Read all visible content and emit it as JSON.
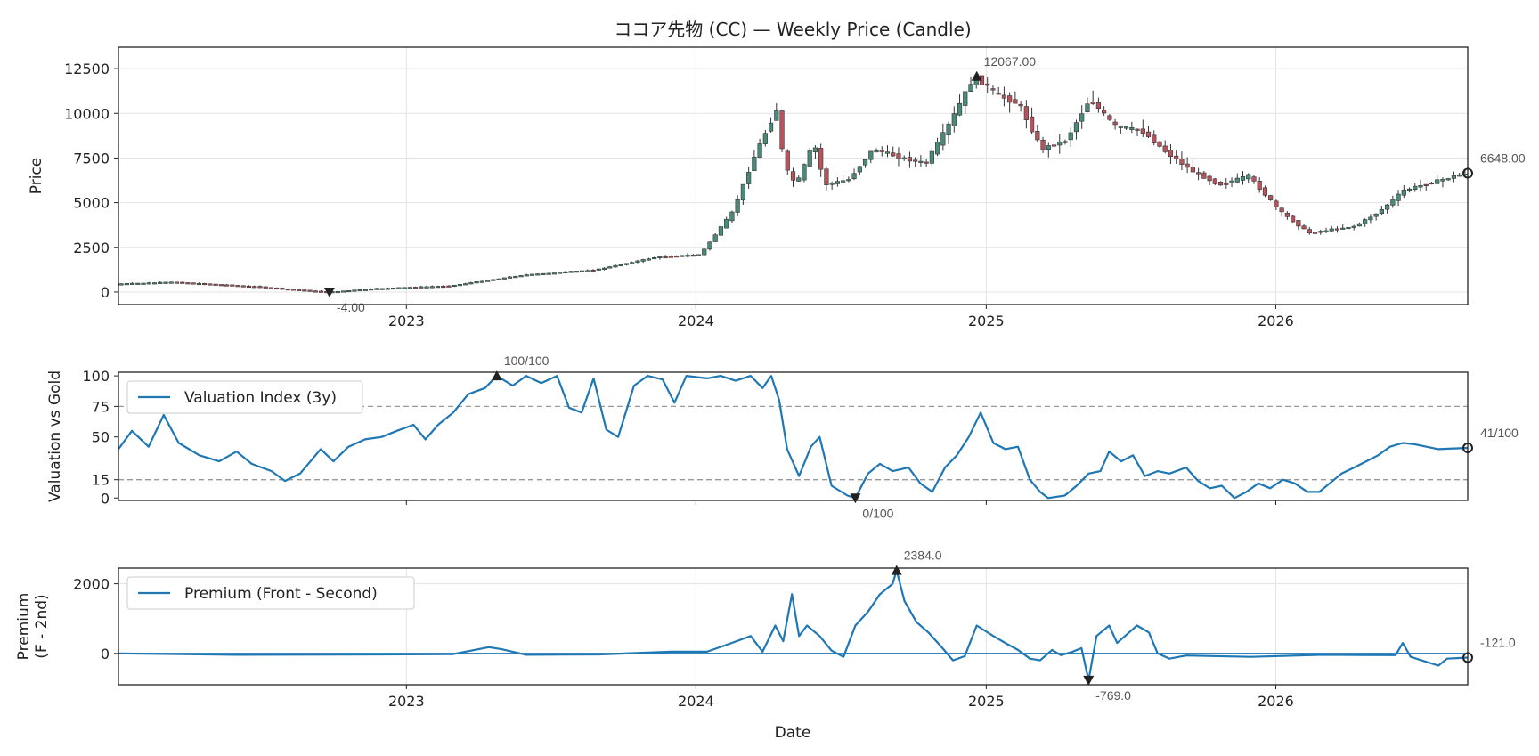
{
  "title": "ココア先物 (CC) — Weekly Price (Candle)",
  "colors": {
    "up": "#4a8a7a",
    "down": "#b5545c",
    "wick": "#333333",
    "line": "#1f77b4",
    "ref": "#999999",
    "marker": "#222222"
  },
  "x_axis": {
    "label": "Date",
    "ticks": [
      "2023",
      "2024",
      "2025",
      "2026"
    ],
    "range": [
      "2022-01-03",
      "2026-08-31"
    ]
  },
  "chart_data": [
    {
      "type": "candlestick",
      "ylabel": "Price",
      "ylim": [
        -700,
        13700
      ],
      "yticks": [
        0,
        2500,
        5000,
        7500,
        10000,
        12500
      ],
      "grid": true,
      "anchors": [
        [
          "2022-01-03",
          450
        ],
        [
          "2022-03-15",
          550
        ],
        [
          "2022-07-01",
          300
        ],
        [
          "2022-09-26",
          -4
        ],
        [
          "2022-12-01",
          200
        ],
        [
          "2023-03-01",
          350
        ],
        [
          "2023-06-01",
          950
        ],
        [
          "2023-09-01",
          1250
        ],
        [
          "2023-11-15",
          1950
        ],
        [
          "2024-01-10",
          2100
        ],
        [
          "2024-02-20",
          4500
        ],
        [
          "2024-03-20",
          7800
        ],
        [
          "2024-04-15",
          10200
        ],
        [
          "2024-04-25",
          7000
        ],
        [
          "2024-05-10",
          6000
        ],
        [
          "2024-06-01",
          8400
        ],
        [
          "2024-06-15",
          6000
        ],
        [
          "2024-07-15",
          6300
        ],
        [
          "2024-08-15",
          8000
        ],
        [
          "2024-09-20",
          7500
        ],
        [
          "2024-10-20",
          7200
        ],
        [
          "2024-11-20",
          9500
        ],
        [
          "2024-12-20",
          12067
        ],
        [
          "2025-01-20",
          11000
        ],
        [
          "2025-02-15",
          10500
        ],
        [
          "2025-03-15",
          8000
        ],
        [
          "2025-04-15",
          8500
        ],
        [
          "2025-05-15",
          10800
        ],
        [
          "2025-06-15",
          9300
        ],
        [
          "2025-07-20",
          9000
        ],
        [
          "2025-08-20",
          7800
        ],
        [
          "2025-09-20",
          6800
        ],
        [
          "2025-10-25",
          6000
        ],
        [
          "2025-12-01",
          6500
        ],
        [
          "2026-01-10",
          4500
        ],
        [
          "2026-02-15",
          3300
        ],
        [
          "2026-03-15",
          3500
        ],
        [
          "2026-04-15",
          3700
        ],
        [
          "2026-05-15",
          4500
        ],
        [
          "2026-06-15",
          5700
        ],
        [
          "2026-08-31",
          6648
        ]
      ],
      "annotations": [
        {
          "kind": "max",
          "date": "2024-12-20",
          "value": 12067,
          "label": "12067.00"
        },
        {
          "kind": "min",
          "date": "2022-09-26",
          "value": -4,
          "label": "-4.00"
        },
        {
          "kind": "last",
          "date": "2026-08-31",
          "value": 6648,
          "label": "6648.00"
        }
      ]
    },
    {
      "type": "line",
      "ylabel": "Valuation vs Gold",
      "ylim": [
        -2,
        103
      ],
      "yticks": [
        0,
        15,
        50,
        75,
        100
      ],
      "reference_lines": [
        15,
        75
      ],
      "series": [
        {
          "name": "Valuation Index (3y)",
          "points": [
            [
              "2022-01-03",
              40
            ],
            [
              "2022-01-20",
              55
            ],
            [
              "2022-02-10",
              42
            ],
            [
              "2022-03-01",
              68
            ],
            [
              "2022-03-20",
              45
            ],
            [
              "2022-04-15",
              35
            ],
            [
              "2022-05-10",
              30
            ],
            [
              "2022-06-01",
              38
            ],
            [
              "2022-06-20",
              28
            ],
            [
              "2022-07-15",
              22
            ],
            [
              "2022-08-01",
              14
            ],
            [
              "2022-08-20",
              20
            ],
            [
              "2022-09-15",
              40
            ],
            [
              "2022-10-01",
              30
            ],
            [
              "2022-10-20",
              42
            ],
            [
              "2022-11-10",
              48
            ],
            [
              "2022-12-01",
              50
            ],
            [
              "2022-12-20",
              55
            ],
            [
              "2023-01-10",
              60
            ],
            [
              "2023-01-25",
              48
            ],
            [
              "2023-02-10",
              60
            ],
            [
              "2023-03-01",
              70
            ],
            [
              "2023-03-20",
              85
            ],
            [
              "2023-04-10",
              90
            ],
            [
              "2023-04-25",
              100
            ],
            [
              "2023-05-15",
              92
            ],
            [
              "2023-06-01",
              100
            ],
            [
              "2023-06-20",
              94
            ],
            [
              "2023-07-10",
              100
            ],
            [
              "2023-07-25",
              74
            ],
            [
              "2023-08-10",
              70
            ],
            [
              "2023-08-25",
              98
            ],
            [
              "2023-09-10",
              56
            ],
            [
              "2023-09-25",
              50
            ],
            [
              "2023-10-15",
              92
            ],
            [
              "2023-11-01",
              100
            ],
            [
              "2023-11-20",
              97
            ],
            [
              "2023-12-05",
              78
            ],
            [
              "2023-12-20",
              100
            ],
            [
              "2024-01-15",
              98
            ],
            [
              "2024-02-01",
              100
            ],
            [
              "2024-02-20",
              96
            ],
            [
              "2024-03-10",
              100
            ],
            [
              "2024-03-25",
              90
            ],
            [
              "2024-04-05",
              100
            ],
            [
              "2024-04-15",
              80
            ],
            [
              "2024-04-25",
              40
            ],
            [
              "2024-05-10",
              18
            ],
            [
              "2024-05-25",
              42
            ],
            [
              "2024-06-05",
              50
            ],
            [
              "2024-06-20",
              10
            ],
            [
              "2024-07-10",
              2
            ],
            [
              "2024-07-20",
              0
            ],
            [
              "2024-08-05",
              20
            ],
            [
              "2024-08-20",
              28
            ],
            [
              "2024-09-05",
              22
            ],
            [
              "2024-09-25",
              25
            ],
            [
              "2024-10-10",
              12
            ],
            [
              "2024-10-25",
              5
            ],
            [
              "2024-11-10",
              25
            ],
            [
              "2024-11-25",
              35
            ],
            [
              "2024-12-10",
              50
            ],
            [
              "2024-12-25",
              70
            ],
            [
              "2025-01-10",
              45
            ],
            [
              "2025-01-25",
              40
            ],
            [
              "2025-02-10",
              42
            ],
            [
              "2025-02-25",
              15
            ],
            [
              "2025-03-10",
              5
            ],
            [
              "2025-03-20",
              0
            ],
            [
              "2025-04-10",
              2
            ],
            [
              "2025-04-25",
              10
            ],
            [
              "2025-05-10",
              20
            ],
            [
              "2025-05-25",
              22
            ],
            [
              "2025-06-05",
              38
            ],
            [
              "2025-06-20",
              30
            ],
            [
              "2025-07-05",
              35
            ],
            [
              "2025-07-20",
              18
            ],
            [
              "2025-08-05",
              22
            ],
            [
              "2025-08-20",
              20
            ],
            [
              "2025-09-10",
              25
            ],
            [
              "2025-09-25",
              14
            ],
            [
              "2025-10-10",
              8
            ],
            [
              "2025-10-25",
              10
            ],
            [
              "2025-11-10",
              0
            ],
            [
              "2025-11-25",
              5
            ],
            [
              "2025-12-10",
              12
            ],
            [
              "2025-12-25",
              8
            ],
            [
              "2026-01-10",
              15
            ],
            [
              "2026-01-25",
              12
            ],
            [
              "2026-02-10",
              5
            ],
            [
              "2026-02-25",
              5
            ],
            [
              "2026-03-10",
              12
            ],
            [
              "2026-03-25",
              20
            ],
            [
              "2026-04-10",
              25
            ],
            [
              "2026-04-25",
              30
            ],
            [
              "2026-05-10",
              35
            ],
            [
              "2026-05-25",
              42
            ],
            [
              "2026-06-10",
              45
            ],
            [
              "2026-06-25",
              44
            ],
            [
              "2026-07-10",
              42
            ],
            [
              "2026-07-25",
              40
            ],
            [
              "2026-08-31",
              41
            ]
          ]
        }
      ],
      "legend": "top-left",
      "annotations": [
        {
          "kind": "max",
          "date": "2023-04-25",
          "value": 100,
          "label": "100/100"
        },
        {
          "kind": "min",
          "date": "2024-07-20",
          "value": 0,
          "label": "0/100"
        },
        {
          "kind": "last",
          "date": "2026-08-31",
          "value": 41,
          "label": "41/100"
        }
      ]
    },
    {
      "type": "line",
      "ylabel": "Premium\n(F - 2nd)",
      "ylim": [
        -900,
        2450
      ],
      "yticks": [
        0,
        2000
      ],
      "reference_lines": [
        0
      ],
      "series": [
        {
          "name": "Premium (Front - Second)",
          "points": [
            [
              "2022-01-03",
              0
            ],
            [
              "2022-06-01",
              -40
            ],
            [
              "2022-12-01",
              -30
            ],
            [
              "2023-03-01",
              -20
            ],
            [
              "2023-04-15",
              180
            ],
            [
              "2023-05-01",
              120
            ],
            [
              "2023-06-01",
              -40
            ],
            [
              "2023-09-01",
              -30
            ],
            [
              "2023-12-01",
              50
            ],
            [
              "2024-01-15",
              50
            ],
            [
              "2024-02-15",
              300
            ],
            [
              "2024-03-10",
              500
            ],
            [
              "2024-03-25",
              50
            ],
            [
              "2024-04-10",
              800
            ],
            [
              "2024-04-20",
              350
            ],
            [
              "2024-05-01",
              1700
            ],
            [
              "2024-05-10",
              500
            ],
            [
              "2024-05-20",
              800
            ],
            [
              "2024-06-05",
              500
            ],
            [
              "2024-06-20",
              80
            ],
            [
              "2024-07-05",
              -100
            ],
            [
              "2024-07-20",
              800
            ],
            [
              "2024-08-05",
              1200
            ],
            [
              "2024-08-20",
              1700
            ],
            [
              "2024-09-05",
              2000
            ],
            [
              "2024-09-10",
              2384
            ],
            [
              "2024-09-20",
              1500
            ],
            [
              "2024-10-05",
              900
            ],
            [
              "2024-10-20",
              600
            ],
            [
              "2024-11-05",
              200
            ],
            [
              "2024-11-20",
              -200
            ],
            [
              "2024-12-05",
              -80
            ],
            [
              "2024-12-20",
              800
            ],
            [
              "2025-01-10",
              500
            ],
            [
              "2025-01-25",
              300
            ],
            [
              "2025-02-10",
              100
            ],
            [
              "2025-02-25",
              -150
            ],
            [
              "2025-03-10",
              -200
            ],
            [
              "2025-03-25",
              100
            ],
            [
              "2025-04-05",
              -50
            ],
            [
              "2025-04-20",
              50
            ],
            [
              "2025-05-01",
              150
            ],
            [
              "2025-05-10",
              -769
            ],
            [
              "2025-05-20",
              500
            ],
            [
              "2025-06-05",
              800
            ],
            [
              "2025-06-15",
              300
            ],
            [
              "2025-06-25",
              500
            ],
            [
              "2025-07-10",
              800
            ],
            [
              "2025-07-25",
              600
            ],
            [
              "2025-08-05",
              0
            ],
            [
              "2025-08-20",
              -150
            ],
            [
              "2025-09-10",
              -60
            ],
            [
              "2025-12-01",
              -100
            ],
            [
              "2026-03-01",
              -40
            ],
            [
              "2026-06-01",
              -50
            ],
            [
              "2026-06-10",
              300
            ],
            [
              "2026-06-20",
              -100
            ],
            [
              "2026-07-25",
              -350
            ],
            [
              "2026-08-05",
              -150
            ],
            [
              "2026-08-31",
              -121
            ]
          ]
        }
      ],
      "legend": "top-left",
      "annotations": [
        {
          "kind": "max",
          "date": "2024-09-10",
          "value": 2384,
          "label": "2384.0"
        },
        {
          "kind": "min",
          "date": "2025-05-10",
          "value": -769,
          "label": "-769.0"
        },
        {
          "kind": "last",
          "date": "2026-08-31",
          "value": -121,
          "label": "-121.0"
        }
      ]
    }
  ]
}
